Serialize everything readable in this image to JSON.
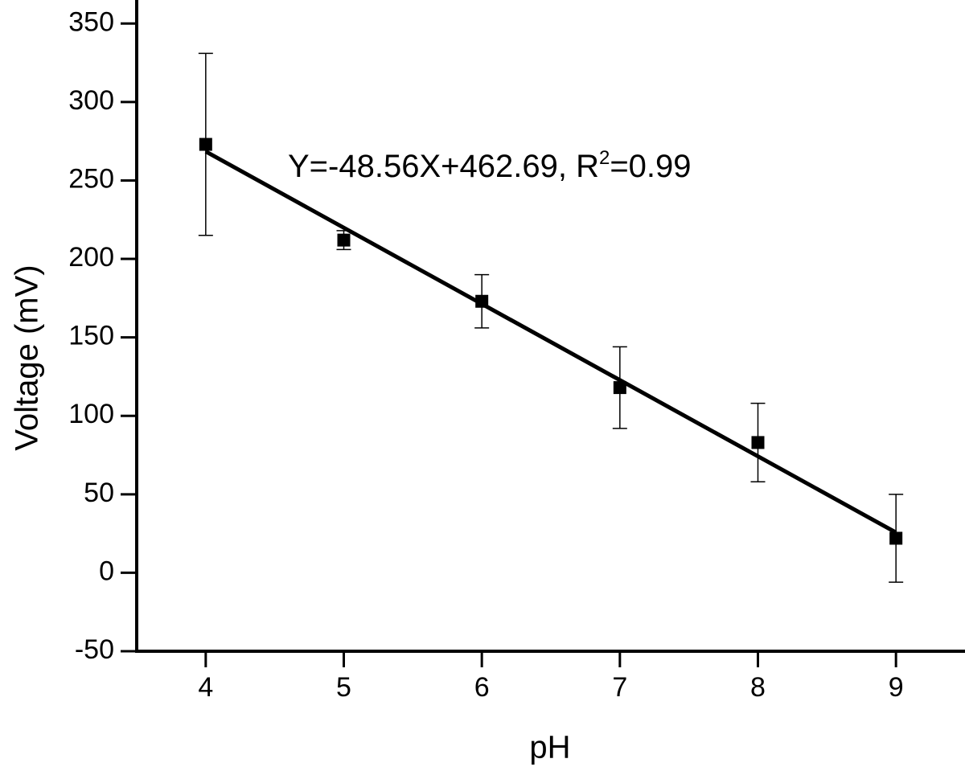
{
  "chart_data": {
    "type": "scatter",
    "title": "",
    "xlabel": "pH",
    "ylabel": "Voltage (mV)",
    "xlim": [
      3.5,
      9.5
    ],
    "ylim": [
      -50,
      365
    ],
    "xticks": [
      4,
      5,
      6,
      7,
      8,
      9
    ],
    "yticks": [
      -50,
      0,
      50,
      100,
      150,
      200,
      250,
      300,
      350
    ],
    "xtick_labels": [
      "4",
      "5",
      "6",
      "7",
      "8",
      "9"
    ],
    "ytick_labels": [
      "-50",
      "0",
      "50",
      "100",
      "150",
      "200",
      "250",
      "300",
      "350"
    ],
    "grid": false,
    "series": [
      {
        "marker": "square",
        "color": "#000000",
        "x": [
          4,
          5,
          6,
          7,
          8,
          9
        ],
        "y": [
          273,
          212,
          173,
          118,
          83,
          22
        ],
        "error": [
          58,
          6,
          17,
          26,
          25,
          28
        ]
      }
    ],
    "fit": {
      "slope": -48.56,
      "intercept": 462.69,
      "x_range": [
        4,
        9
      ],
      "color": "#000000"
    },
    "annotation": {
      "main": "Y=-48.56X+462.69, R",
      "sup": "2",
      "tail": "=0.99"
    }
  }
}
